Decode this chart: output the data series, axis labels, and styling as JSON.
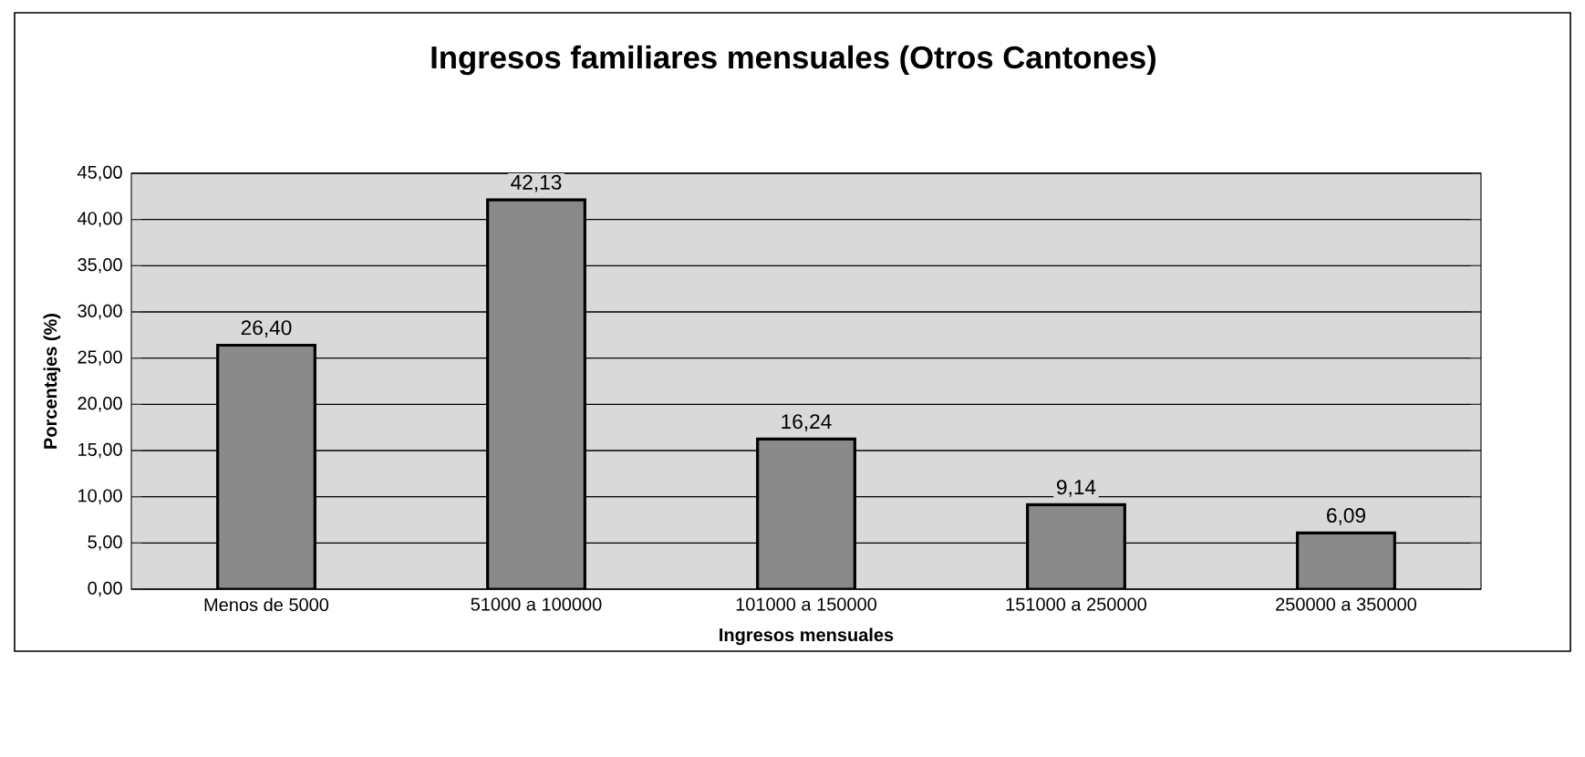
{
  "chart_data": {
    "type": "bar",
    "title": "Ingresos familiares mensuales (Otros Cantones)",
    "xlabel": "Ingresos mensuales",
    "ylabel": "Porcentajes (%)",
    "categories": [
      "Menos de 5000",
      "51000 a 100000",
      "101000 a 150000",
      "151000 a 250000",
      "250000 a 350000"
    ],
    "values": [
      26.4,
      42.13,
      16.24,
      9.14,
      6.09
    ],
    "value_labels": [
      "26,40",
      "42,13",
      "16,24",
      "9,14",
      "6,09"
    ],
    "color": "#8a8a8a",
    "ylim": [
      0,
      45
    ],
    "yticks": [
      {
        "value": 0,
        "label": "0,00"
      },
      {
        "value": 5,
        "label": "5,00"
      },
      {
        "value": 10,
        "label": "10,00"
      },
      {
        "value": 15,
        "label": "15,00"
      },
      {
        "value": 20,
        "label": "20,00"
      },
      {
        "value": 25,
        "label": "25,00"
      },
      {
        "value": 30,
        "label": "30,00"
      },
      {
        "value": 35,
        "label": "35,00"
      },
      {
        "value": 40,
        "label": "40,00"
      },
      {
        "value": 45,
        "label": "45,00"
      }
    ],
    "grid": "y"
  }
}
